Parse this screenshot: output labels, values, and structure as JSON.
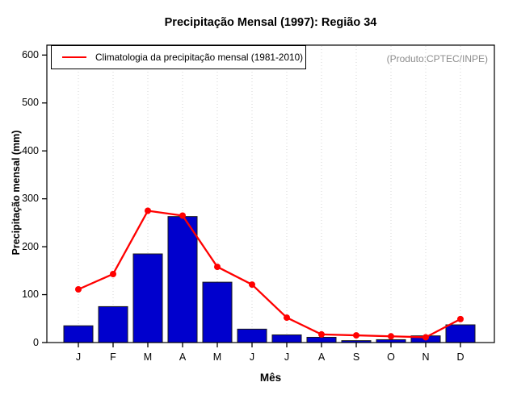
{
  "title": "Precipitação Mensal (1997): Região 34",
  "watermark": "(Produto:CPTEC/INPE)",
  "legend": {
    "label": "Climatologia da precipitação mensal (1981-2010)",
    "line_color": "#ff0000"
  },
  "chart_data": {
    "type": "bar",
    "title": "Precipitação Mensal (1997): Região 34",
    "categories": [
      "J",
      "F",
      "M",
      "A",
      "M",
      "J",
      "J",
      "A",
      "S",
      "O",
      "N",
      "D"
    ],
    "series": [
      {
        "name": "Precipitação mensal 1997",
        "type": "bar",
        "color": "#0000CD",
        "values": [
          35,
          75,
          185,
          263,
          126,
          28,
          16,
          11,
          4,
          6,
          14,
          37
        ]
      },
      {
        "name": "Climatologia da precipitação mensal (1981-2010)",
        "type": "line",
        "color": "#FF0000",
        "values": [
          111,
          143,
          275,
          265,
          158,
          121,
          52,
          17,
          15,
          13,
          11,
          49
        ]
      }
    ],
    "xlabel": "Mês",
    "ylabel": "Precipitação mensal (mm)",
    "ylim": [
      0,
      600
    ],
    "yticks": [
      0,
      100,
      200,
      300,
      400,
      500,
      600
    ],
    "grid": "vertical-dotted",
    "grid_color": "#d4d4d4",
    "legend_position": "topleft",
    "annotation": "(Produto:CPTEC/INPE)"
  }
}
